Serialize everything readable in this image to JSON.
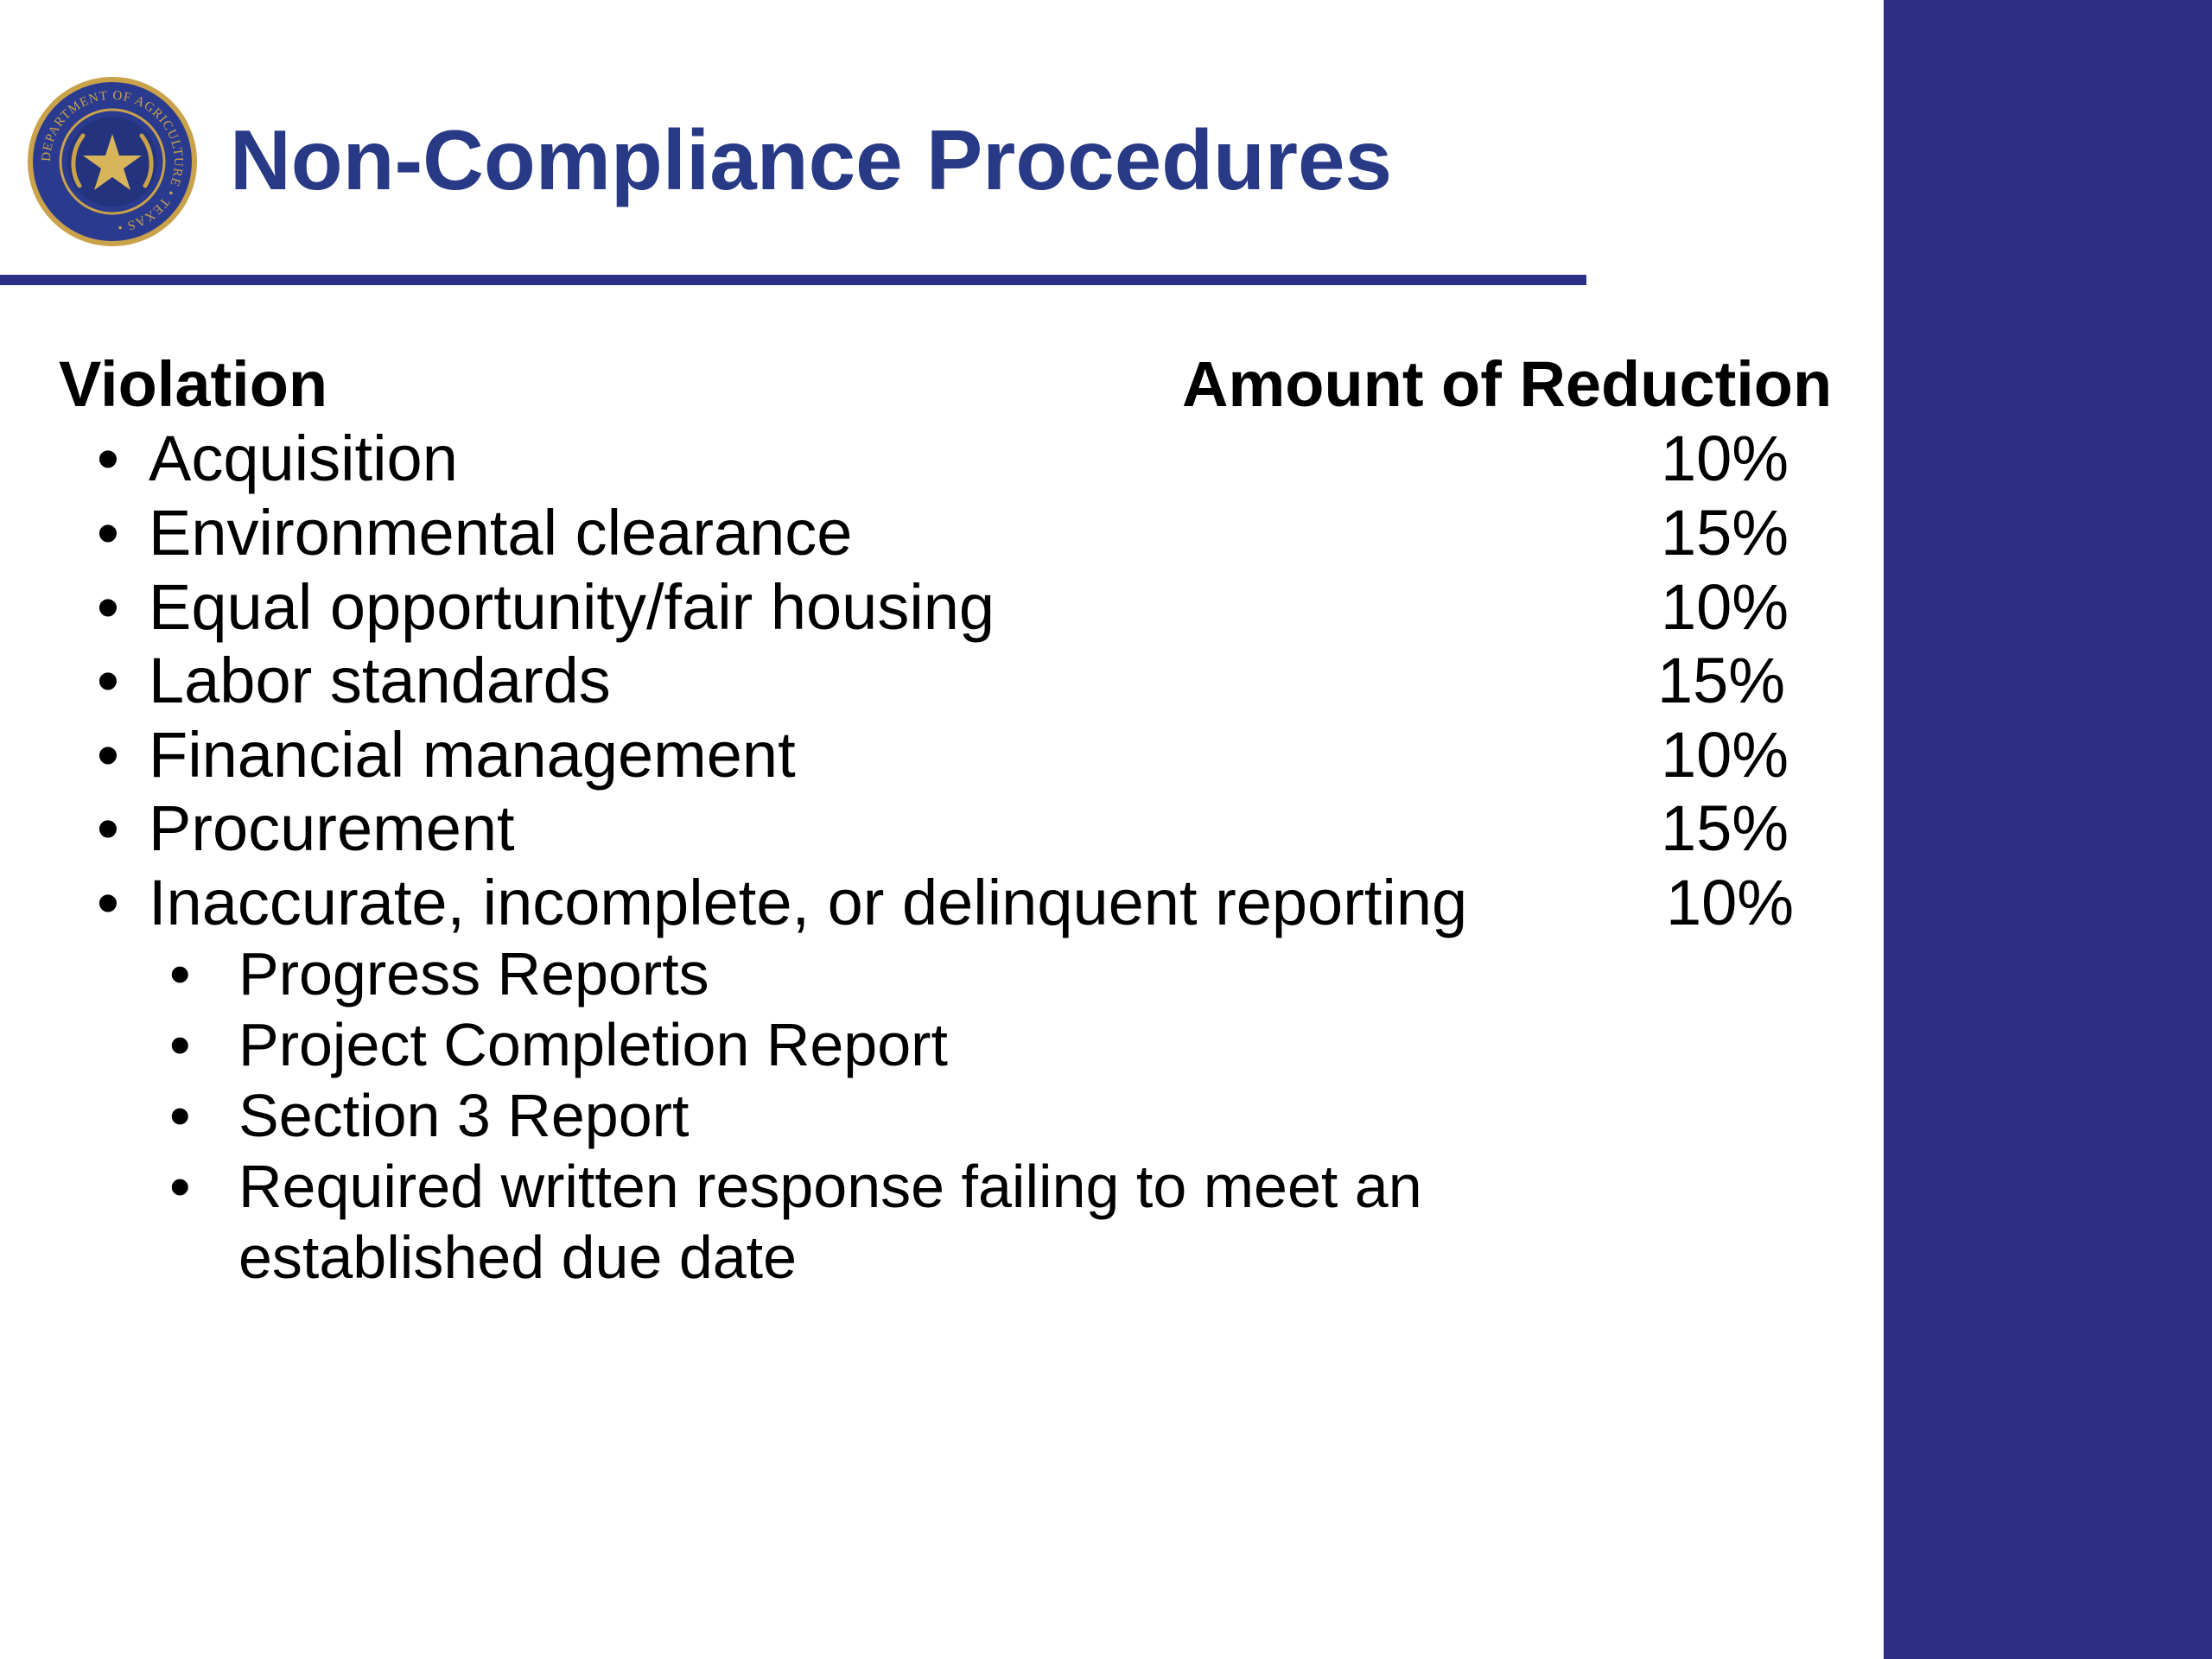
{
  "slide": {
    "title": "Non-Compliance Procedures",
    "seal_icon": "texas-department-of-agriculture-seal",
    "seal_text": "DEPARTMENT OF AGRICULTURE • TEXAS •",
    "colors": {
      "title": "#283a86",
      "rule": "#2d2f87",
      "side_bar": "#2d2f87",
      "body_text": "#000000",
      "seal_blue": "#2a3a8f",
      "seal_gold": "#c9a24a"
    }
  },
  "table": {
    "header_violation": "Violation",
    "header_amount": "Amount of Reduction",
    "bullet": "•",
    "rows": [
      {
        "label": "Acquisition",
        "value": "10%"
      },
      {
        "label": "Environmental clearance",
        "value": "15%"
      },
      {
        "label": "Equal opportunity/fair housing",
        "value": "10%"
      },
      {
        "label": "Labor standards",
        "value": "15%"
      },
      {
        "label": "Financial management",
        "value": "10%"
      },
      {
        "label": "Procurement",
        "value": "15%"
      },
      {
        "label": "Inaccurate, incomplete, or delinquent reporting",
        "value": "10%"
      }
    ],
    "sub_items": [
      {
        "label": "Progress Reports"
      },
      {
        "label": "Project Completion Report"
      },
      {
        "label": "Section 3 Report"
      },
      {
        "label": "Required written response failing to meet an established due date"
      }
    ]
  }
}
